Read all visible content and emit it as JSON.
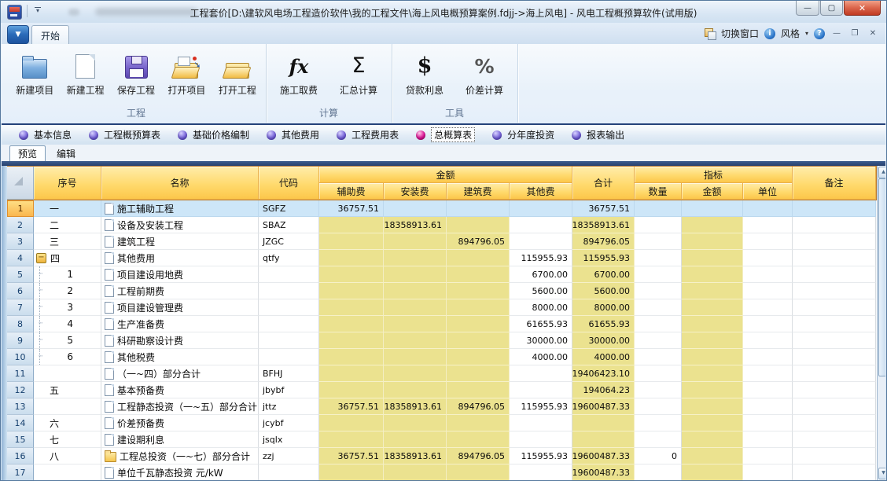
{
  "titlebar": {
    "title": "工程套价[D:\\建软风电场工程造价软件\\我的工程文件\\海上风电概预算案例.fdjj->海上风电] - 风电工程概预算软件(试用版)",
    "min": "—",
    "max": "▢",
    "close": "✕"
  },
  "tabrow": {
    "start_tab": "开始",
    "switch_window": "切换窗口",
    "style": "风格",
    "style_caret": "▾",
    "mdi_min": "—",
    "mdi_restore": "❐",
    "mdi_close": "✕"
  },
  "ribbon": {
    "groups": [
      {
        "label": "工程",
        "buttons": [
          {
            "label": "新建项目",
            "icon": "folder-blue-icon"
          },
          {
            "label": "新建工程",
            "icon": "new-document-icon"
          },
          {
            "label": "保存工程",
            "icon": "floppy-disk-icon"
          },
          {
            "label": "打开项目",
            "icon": "open-project-folder-icon"
          },
          {
            "label": "打开工程",
            "icon": "open-folder-icon"
          }
        ]
      },
      {
        "label": "计算",
        "buttons": [
          {
            "label": "施工取费",
            "icon": "fx-icon",
            "glyph": "fx"
          },
          {
            "label": "汇总计算",
            "icon": "sigma-icon",
            "glyph": "Σ"
          }
        ]
      },
      {
        "label": "工具",
        "buttons": [
          {
            "label": "贷款利息",
            "icon": "dollar-icon",
            "glyph": "$"
          },
          {
            "label": "价差计算",
            "icon": "percent-icon",
            "glyph": "%"
          }
        ]
      }
    ]
  },
  "nav": {
    "items": [
      {
        "label": "基本信息",
        "selected": false
      },
      {
        "label": "工程概预算表",
        "selected": false
      },
      {
        "label": "基础价格编制",
        "selected": false
      },
      {
        "label": "其他费用",
        "selected": false
      },
      {
        "label": "工程费用表",
        "selected": false
      },
      {
        "label": "总概算表",
        "selected": true
      },
      {
        "label": "分年度投资",
        "selected": false
      },
      {
        "label": "报表输出",
        "selected": false
      }
    ]
  },
  "subtabs": {
    "preview": "预览",
    "edit": "编辑"
  },
  "table": {
    "header": {
      "sn": "序号",
      "name": "名称",
      "code": "代码",
      "amount_group": "金额",
      "aux": "辅助费",
      "inst": "安装费",
      "build": "建筑费",
      "other": "其他费",
      "total": "合计",
      "indicator_group": "指标",
      "qty": "数量",
      "iamt": "金额",
      "unit": "单位",
      "note": "备注"
    },
    "rows": [
      {
        "n": "1",
        "sn": "一",
        "name": "施工辅助工程",
        "code": "SGFZ",
        "aux": "36757.51",
        "total": "36757.51",
        "sel": true,
        "icon": "doc"
      },
      {
        "n": "2",
        "sn": "二",
        "name": "设备及安装工程",
        "code": "SBAZ",
        "inst": "18358913.61",
        "total": "18358913.61",
        "icon": "doc"
      },
      {
        "n": "3",
        "sn": "三",
        "name": "建筑工程",
        "code": "JZGC",
        "build": "894796.05",
        "total": "894796.05",
        "icon": "doc"
      },
      {
        "n": "4",
        "sn": "四",
        "name": "其他费用",
        "code": "qtfy",
        "other": "115955.93",
        "total": "115955.93",
        "tree": "expander",
        "icon": "doc"
      },
      {
        "n": "5",
        "sn": "1",
        "name": "项目建设用地费",
        "other": "6700.00",
        "total": "6700.00",
        "tree": "child",
        "icon": "doc"
      },
      {
        "n": "6",
        "sn": "2",
        "name": "工程前期费",
        "other": "5600.00",
        "total": "5600.00",
        "tree": "child",
        "icon": "doc"
      },
      {
        "n": "7",
        "sn": "3",
        "name": "项目建设管理费",
        "other": "8000.00",
        "total": "8000.00",
        "tree": "child",
        "icon": "doc"
      },
      {
        "n": "8",
        "sn": "4",
        "name": "生产准备费",
        "other": "61655.93",
        "total": "61655.93",
        "tree": "child",
        "icon": "doc"
      },
      {
        "n": "9",
        "sn": "5",
        "name": "科研勘察设计费",
        "other": "30000.00",
        "total": "30000.00",
        "tree": "child",
        "icon": "doc"
      },
      {
        "n": "10",
        "sn": "6",
        "name": "其他税费",
        "other": "4000.00",
        "total": "4000.00",
        "tree": "child",
        "icon": "doc"
      },
      {
        "n": "11",
        "name": "（一~四）部分合计",
        "code": "BFHJ",
        "total": "19406423.10",
        "icon": "doc"
      },
      {
        "n": "12",
        "sn": "五",
        "name": "基本预备费",
        "code": "jbybf",
        "total": "194064.23",
        "icon": "doc"
      },
      {
        "n": "13",
        "name": "工程静态投资（一~五）部分合计",
        "code": "jttz",
        "aux": "36757.51",
        "inst": "18358913.61",
        "build": "894796.05",
        "other": "115955.93",
        "total": "19600487.33",
        "icon": "doc"
      },
      {
        "n": "14",
        "sn": "六",
        "name": "价差预备费",
        "code": "jcybf",
        "icon": "doc"
      },
      {
        "n": "15",
        "sn": "七",
        "name": "建设期利息",
        "code": "jsqlx",
        "icon": "doc"
      },
      {
        "n": "16",
        "sn": "八",
        "name": "工程总投资（一~七）部分合计",
        "code": "zzj",
        "aux": "36757.51",
        "inst": "18358913.61",
        "build": "894796.05",
        "other": "115955.93",
        "total": "19600487.33",
        "qty": "0",
        "icon": "folder"
      },
      {
        "n": "17",
        "name": "单位千瓦静态投资 元/kW",
        "total": "19600487.33",
        "icon": "doc"
      },
      {
        "n": ""
      }
    ]
  },
  "colors": {
    "header_yellow": "#fcc74a",
    "cell_yellow": "#ebe28f",
    "selected_row_blue": "#cde6f8",
    "nav_dot_purple": "#6a5ad0",
    "nav_dot_selected_magenta": "#e0189a",
    "close_button_red": "#c03a22",
    "dark_strip_navy": "#27416e"
  }
}
